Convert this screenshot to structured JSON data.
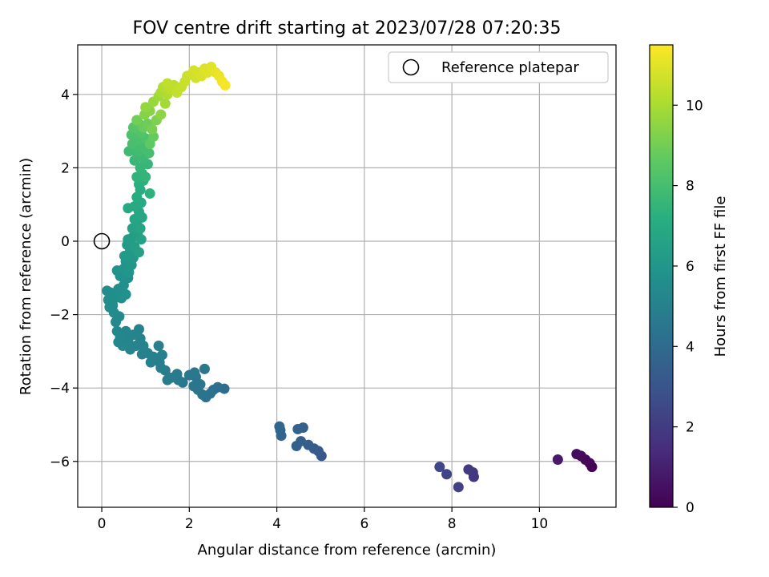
{
  "chart_data": {
    "type": "scatter",
    "title": "FOV centre drift starting at 2023/07/28 07:20:35",
    "xlabel": "Angular distance from reference (arcmin)",
    "ylabel": "Rotation from reference (arcmin)",
    "xlim": [
      -0.55,
      11.75
    ],
    "ylim": [
      -7.25,
      5.35
    ],
    "x_ticks": [
      0,
      2,
      4,
      6,
      8,
      10
    ],
    "y_ticks": [
      -6,
      -4,
      -2,
      0,
      2,
      4
    ],
    "grid": true,
    "legend": {
      "placement": "top-right",
      "entries": [
        "Reference platepar"
      ]
    },
    "reference_point": {
      "name": "Reference platepar",
      "x": 0,
      "y": 0,
      "marker": "open-circle"
    },
    "colorbar": {
      "label": "Hours from first FF file",
      "colormap": "viridis",
      "min": 0,
      "max": 11.5,
      "ticks": [
        0,
        2,
        4,
        6,
        8,
        10
      ]
    },
    "points": [
      [
        11.2,
        -6.15,
        0.0
      ],
      [
        11.15,
        -6.05,
        0.1
      ],
      [
        11.05,
        -5.95,
        0.2
      ],
      [
        10.95,
        -5.85,
        0.3
      ],
      [
        10.85,
        -5.8,
        0.4
      ],
      [
        10.42,
        -5.95,
        0.8
      ],
      [
        8.5,
        -6.42,
        1.8
      ],
      [
        8.48,
        -6.3,
        1.9
      ],
      [
        8.38,
        -6.22,
        2.0
      ],
      [
        8.15,
        -6.7,
        2.2
      ],
      [
        7.88,
        -6.35,
        2.35
      ],
      [
        7.72,
        -6.15,
        2.45
      ],
      [
        5.02,
        -5.85,
        3.1
      ],
      [
        4.95,
        -5.72,
        3.2
      ],
      [
        4.85,
        -5.65,
        3.3
      ],
      [
        4.72,
        -5.55,
        3.4
      ],
      [
        4.55,
        -5.45,
        3.45
      ],
      [
        4.45,
        -5.58,
        3.5
      ],
      [
        4.6,
        -5.08,
        3.55
      ],
      [
        4.48,
        -5.12,
        3.6
      ],
      [
        4.1,
        -5.3,
        3.7
      ],
      [
        4.08,
        -5.15,
        3.75
      ],
      [
        4.06,
        -5.05,
        3.8
      ],
      [
        2.8,
        -4.02,
        4.1
      ],
      [
        2.65,
        -3.98,
        4.15
      ],
      [
        2.55,
        -4.05,
        4.2
      ],
      [
        2.48,
        -4.15,
        4.25
      ],
      [
        2.38,
        -4.25,
        4.3
      ],
      [
        2.3,
        -4.18,
        4.35
      ],
      [
        2.2,
        -4.05,
        4.4
      ],
      [
        2.1,
        -3.95,
        4.45
      ],
      [
        2.25,
        -3.9,
        4.5
      ],
      [
        2.15,
        -3.7,
        4.5
      ],
      [
        2.35,
        -3.48,
        4.55
      ],
      [
        2.12,
        -3.58,
        4.55
      ],
      [
        2.0,
        -3.65,
        4.6
      ],
      [
        1.85,
        -3.85,
        4.65
      ],
      [
        1.75,
        -3.78,
        4.7
      ],
      [
        1.72,
        -3.62,
        4.7
      ],
      [
        1.58,
        -3.72,
        4.75
      ],
      [
        1.5,
        -3.78,
        4.8
      ],
      [
        1.45,
        -3.52,
        4.8
      ],
      [
        1.35,
        -3.45,
        4.85
      ],
      [
        1.32,
        -3.3,
        4.85
      ],
      [
        1.38,
        -3.1,
        4.9
      ],
      [
        1.3,
        -2.85,
        4.9
      ],
      [
        1.18,
        -3.15,
        4.95
      ],
      [
        1.12,
        -3.3,
        4.95
      ],
      [
        1.05,
        -3.05,
        5.0
      ],
      [
        0.92,
        -3.08,
        5.0
      ],
      [
        0.95,
        -2.85,
        5.05
      ],
      [
        0.88,
        -2.65,
        5.05
      ],
      [
        0.85,
        -2.4,
        5.1
      ],
      [
        0.78,
        -2.85,
        5.1
      ],
      [
        0.72,
        -2.55,
        5.15
      ],
      [
        0.65,
        -2.95,
        5.15
      ],
      [
        0.6,
        -2.7,
        5.2
      ],
      [
        0.55,
        -2.45,
        5.2
      ],
      [
        0.48,
        -2.85,
        5.25
      ],
      [
        0.42,
        -2.6,
        5.25
      ],
      [
        0.38,
        -2.75,
        5.3
      ],
      [
        0.35,
        -2.45,
        5.3
      ],
      [
        0.32,
        -2.2,
        5.35
      ],
      [
        0.4,
        -2.05,
        5.4
      ],
      [
        0.28,
        -1.95,
        5.45
      ],
      [
        0.25,
        -1.75,
        5.5
      ],
      [
        0.18,
        -1.8,
        5.5
      ],
      [
        0.15,
        -1.6,
        5.55
      ],
      [
        0.2,
        -1.4,
        5.55
      ],
      [
        0.12,
        -1.35,
        5.6
      ],
      [
        0.3,
        -1.55,
        5.6
      ],
      [
        0.38,
        -1.3,
        5.65
      ],
      [
        0.45,
        -1.55,
        5.65
      ],
      [
        0.5,
        -1.2,
        5.7
      ],
      [
        0.55,
        -1.45,
        5.75
      ],
      [
        0.6,
        -1.0,
        5.75
      ],
      [
        0.42,
        -0.95,
        5.8
      ],
      [
        0.35,
        -0.8,
        5.85
      ],
      [
        0.5,
        -0.75,
        5.9
      ],
      [
        0.55,
        -0.55,
        5.95
      ],
      [
        0.62,
        -0.85,
        6.0
      ],
      [
        0.68,
        -0.65,
        6.05
      ],
      [
        0.72,
        -0.45,
        6.1
      ],
      [
        0.65,
        -0.25,
        6.15
      ],
      [
        0.52,
        -0.4,
        6.2
      ],
      [
        0.58,
        -0.1,
        6.25
      ],
      [
        0.6,
        0.05,
        6.3
      ],
      [
        0.7,
        0.1,
        6.35
      ],
      [
        0.75,
        -0.15,
        6.4
      ],
      [
        0.82,
        0.2,
        6.45
      ],
      [
        0.85,
        -0.3,
        6.5
      ],
      [
        0.9,
        0.05,
        6.55
      ],
      [
        0.7,
        0.35,
        6.6
      ],
      [
        0.8,
        0.5,
        6.65
      ],
      [
        0.88,
        0.35,
        6.7
      ],
      [
        0.75,
        0.6,
        6.75
      ],
      [
        0.92,
        0.65,
        6.8
      ],
      [
        0.85,
        0.8,
        6.85
      ],
      [
        0.6,
        0.9,
        6.9
      ],
      [
        0.75,
        0.95,
        6.95
      ],
      [
        0.9,
        1.05,
        7.0
      ],
      [
        0.8,
        1.2,
        7.05
      ],
      [
        0.88,
        1.4,
        7.1
      ],
      [
        0.85,
        1.55,
        7.2
      ],
      [
        0.95,
        1.65,
        7.3
      ],
      [
        1.1,
        1.3,
        7.35
      ],
      [
        0.8,
        1.75,
        7.4
      ],
      [
        0.92,
        1.85,
        7.45
      ],
      [
        1.0,
        1.75,
        7.5
      ],
      [
        0.88,
        2.0,
        7.55
      ],
      [
        1.05,
        2.1,
        7.6
      ],
      [
        0.75,
        2.2,
        7.65
      ],
      [
        0.95,
        2.25,
        7.7
      ],
      [
        0.82,
        2.35,
        7.75
      ],
      [
        0.62,
        2.45,
        7.8
      ],
      [
        0.75,
        2.55,
        7.85
      ],
      [
        0.85,
        2.45,
        7.9
      ],
      [
        0.95,
        2.55,
        7.95
      ],
      [
        1.08,
        2.4,
        8.0
      ],
      [
        0.7,
        2.65,
        8.05
      ],
      [
        0.85,
        2.75,
        8.1
      ],
      [
        0.68,
        2.9,
        8.15
      ],
      [
        1.0,
        2.8,
        8.2
      ],
      [
        0.9,
        2.95,
        8.3
      ],
      [
        0.72,
        3.1,
        8.4
      ],
      [
        0.85,
        3.2,
        8.5
      ],
      [
        1.1,
        2.65,
        8.6
      ],
      [
        1.18,
        2.85,
        8.7
      ],
      [
        0.95,
        3.1,
        8.8
      ],
      [
        1.05,
        3.2,
        8.9
      ],
      [
        0.8,
        3.3,
        9.0
      ],
      [
        1.15,
        3.05,
        9.1
      ],
      [
        1.25,
        3.3,
        9.2
      ],
      [
        0.98,
        3.45,
        9.3
      ],
      [
        1.1,
        3.55,
        9.4
      ],
      [
        1.35,
        3.45,
        9.5
      ],
      [
        1.0,
        3.65,
        9.6
      ],
      [
        1.18,
        3.8,
        9.7
      ],
      [
        1.3,
        3.95,
        9.8
      ],
      [
        1.45,
        3.75,
        9.9
      ],
      [
        1.35,
        4.05,
        10.0
      ],
      [
        1.5,
        4.0,
        10.1
      ],
      [
        1.4,
        4.2,
        10.2
      ],
      [
        1.55,
        4.15,
        10.3
      ],
      [
        1.65,
        4.25,
        10.35
      ],
      [
        1.5,
        4.3,
        10.4
      ],
      [
        1.72,
        4.05,
        10.45
      ],
      [
        1.82,
        4.2,
        10.5
      ],
      [
        1.9,
        4.35,
        10.55
      ],
      [
        1.95,
        4.5,
        10.6
      ],
      [
        2.05,
        4.55,
        10.65
      ],
      [
        2.15,
        4.45,
        10.7
      ],
      [
        2.1,
        4.65,
        10.75
      ],
      [
        2.2,
        4.6,
        10.8
      ],
      [
        2.28,
        4.5,
        10.85
      ],
      [
        2.35,
        4.7,
        10.9
      ],
      [
        2.42,
        4.6,
        10.95
      ],
      [
        2.5,
        4.75,
        11.0
      ],
      [
        2.6,
        4.6,
        11.1
      ],
      [
        2.68,
        4.5,
        11.2
      ],
      [
        2.75,
        4.35,
        11.3
      ],
      [
        2.82,
        4.25,
        11.4
      ]
    ]
  }
}
